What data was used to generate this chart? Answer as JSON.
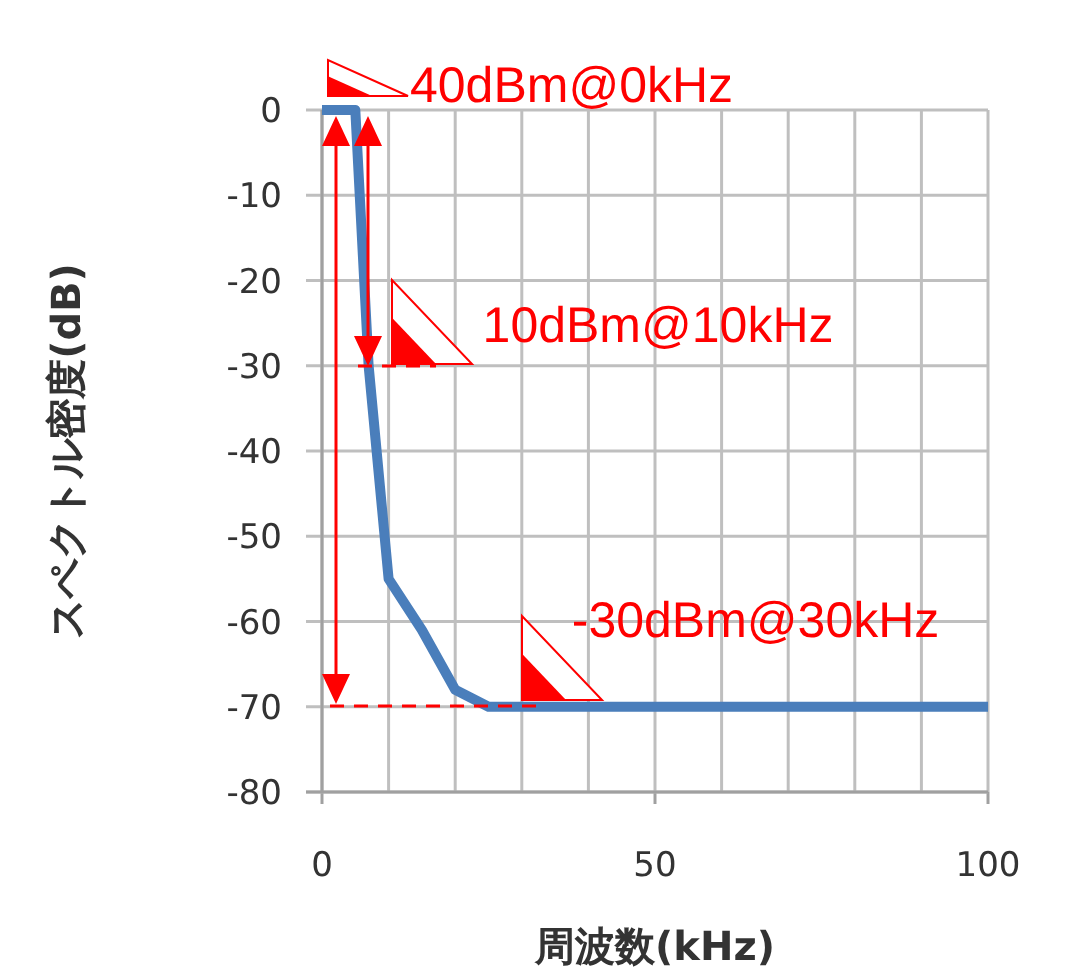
{
  "chart_data": {
    "type": "line",
    "xlabel": "周波数(kHz)",
    "ylabel": "スペクトル密度(dB)",
    "x": [
      0,
      5,
      7,
      10,
      15,
      20,
      25,
      100
    ],
    "series": [
      {
        "color": "#4a7ebb",
        "values": [
          0,
          0,
          -30,
          -55,
          -61,
          -68,
          -70,
          -70
        ]
      }
    ],
    "xlim": [
      0,
      100
    ],
    "ylim": [
      -80,
      0
    ],
    "xticks": [
      0,
      {
        "value": 10,
        "label": null
      },
      {
        "value": 20,
        "label": null
      },
      {
        "value": 30,
        "label": null
      },
      {
        "value": 40,
        "label": null
      },
      50,
      {
        "value": 60,
        "label": null
      },
      {
        "value": 70,
        "label": null
      },
      {
        "value": 80,
        "label": null
      },
      {
        "value": 90,
        "label": null
      },
      100
    ],
    "yticks": [
      0,
      -10,
      -20,
      -30,
      -40,
      -50,
      -60,
      -70,
      -80
    ],
    "grid": true,
    "marker": "none",
    "line_style": "solid",
    "annotations": [
      {
        "text": "40dBm@0kHz",
        "x": 0,
        "y": 0
      },
      {
        "text": "10dBm@10kHz",
        "x": 7,
        "y": -30
      },
      {
        "text": "-30dBm@30kHz",
        "x": 30,
        "y": -70
      }
    ]
  }
}
